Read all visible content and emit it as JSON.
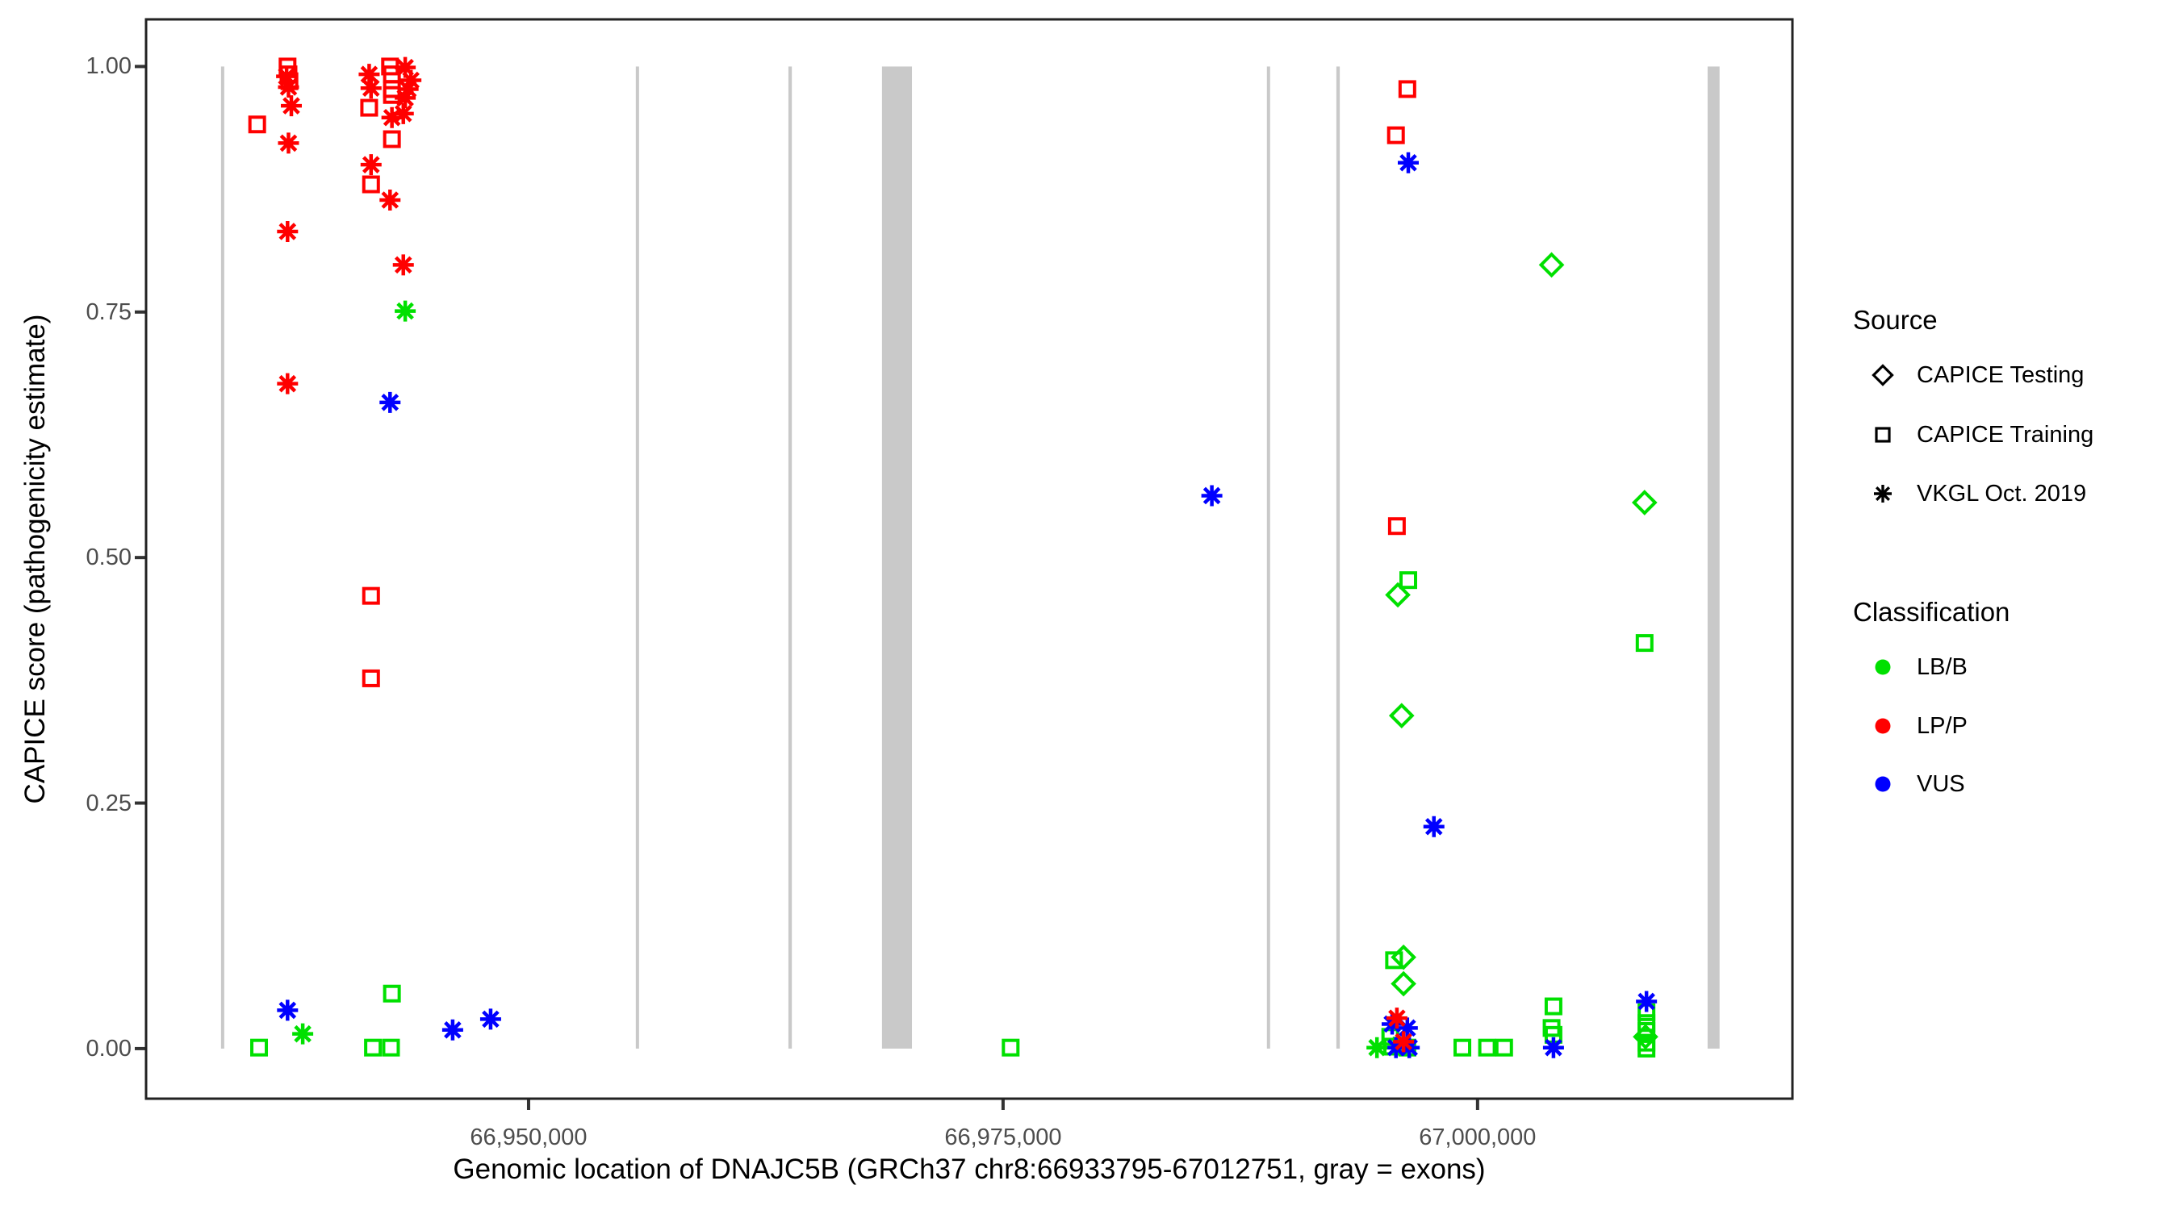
{
  "figure": {
    "x_axis_title": "Genomic location of DNAJC5B (GRCh37 chr8:66933795-67012751, gray = exons)",
    "y_axis_title": "CAPICE score (pathogenicity estimate)"
  },
  "legend": {
    "source": {
      "title": "Source",
      "items": [
        {
          "shape": "diamond",
          "label": "CAPICE Testing"
        },
        {
          "shape": "square",
          "label": "CAPICE Training"
        },
        {
          "shape": "asterisk",
          "label": "VKGL Oct. 2019"
        }
      ]
    },
    "classification": {
      "title": "Classification",
      "items": [
        {
          "label": "LB/B",
          "color": "#00E000"
        },
        {
          "label": "LP/P",
          "color": "#FF0000"
        },
        {
          "label": "VUS",
          "color": "#0000FF"
        }
      ]
    }
  },
  "chart_data": {
    "type": "scatter",
    "title": "",
    "xlabel": "Genomic location of DNAJC5B (GRCh37 chr8:66933795-67012751, gray = exons)",
    "ylabel": "CAPICE score (pathogenicity estimate)",
    "xlim": [
      66929846,
      67016590
    ],
    "ylim": [
      -0.051,
      1.048
    ],
    "grid": false,
    "legend_position": "right",
    "x_ticks": [
      {
        "pos": 66950000,
        "label": "66,950,000"
      },
      {
        "pos": 66975000,
        "label": "66,975,000"
      },
      {
        "pos": 67000000,
        "label": "67,000,000"
      }
    ],
    "y_ticks": [
      {
        "v": 0.0,
        "label": "0.00"
      },
      {
        "v": 0.25,
        "label": "0.25"
      },
      {
        "v": 0.5,
        "label": "0.50"
      },
      {
        "v": 0.75,
        "label": "0.75"
      },
      {
        "v": 1.0,
        "label": "1.00"
      }
    ],
    "exon_color": "#C9C9C9",
    "exons": [
      [
        66933795,
        66933930
      ],
      [
        66955650,
        66955790
      ],
      [
        66963690,
        66963870
      ],
      [
        66968620,
        66970200
      ],
      [
        66988900,
        66989040
      ],
      [
        66992560,
        66992740
      ],
      [
        67012120,
        67012751
      ]
    ],
    "class_colors": {
      "LB/B": "#00E000",
      "LP/P": "#FF0000",
      "VUS": "#0000FF"
    },
    "source_shapes": {
      "testing": "diamond",
      "training": "square",
      "vkgl": "asterisk"
    },
    "source_names": {
      "testing": "CAPICE Testing",
      "training": "CAPICE Training",
      "vkgl": "VKGL Oct. 2019"
    },
    "points": [
      [
        66935800,
        0.001,
        "training",
        "LB/B"
      ],
      [
        66941800,
        0.001,
        "training",
        "LB/B"
      ],
      [
        66942750,
        0.001,
        "training",
        "LB/B"
      ],
      [
        66942800,
        0.056,
        "training",
        "LB/B"
      ],
      [
        66975400,
        0.001,
        "training",
        "LB/B"
      ],
      [
        66996350,
        0.477,
        "training",
        "LB/B"
      ],
      [
        67008800,
        0.413,
        "training",
        "LB/B"
      ],
      [
        66995600,
        0.09,
        "training",
        "LB/B"
      ],
      [
        66999200,
        0.001,
        "training",
        "LB/B"
      ],
      [
        67000500,
        0.001,
        "training",
        "LB/B"
      ],
      [
        67001400,
        0.001,
        "training",
        "LB/B"
      ],
      [
        67004000,
        0.043,
        "training",
        "LB/B"
      ],
      [
        67003900,
        0.021,
        "training",
        "LB/B"
      ],
      [
        67004000,
        0.014,
        "training",
        "LB/B"
      ],
      [
        67008900,
        0.037,
        "training",
        "LB/B"
      ],
      [
        67008900,
        0.026,
        "training",
        "LB/B"
      ],
      [
        67008900,
        0.018,
        "training",
        "LB/B"
      ],
      [
        67008900,
        0.006,
        "training",
        "LB/B"
      ],
      [
        67008900,
        0.0,
        "training",
        "LB/B"
      ],
      [
        66995400,
        0.012,
        "training",
        "LB/B"
      ],
      [
        66995500,
        0.002,
        "training",
        "LB/B"
      ],
      [
        66996000,
        0.003,
        "training",
        "LB/B"
      ],
      [
        66996300,
        0.001,
        "training",
        "LB/B"
      ],
      [
        67003900,
        0.798,
        "testing",
        "LB/B"
      ],
      [
        67008800,
        0.556,
        "testing",
        "LB/B"
      ],
      [
        66995800,
        0.462,
        "testing",
        "LB/B"
      ],
      [
        66996000,
        0.339,
        "testing",
        "LB/B"
      ],
      [
        66996100,
        0.093,
        "testing",
        "LB/B"
      ],
      [
        66996100,
        0.066,
        "testing",
        "LB/B"
      ],
      [
        67008850,
        0.012,
        "testing",
        "LB/B"
      ],
      [
        66937300,
        1.0,
        "training",
        "LP/P"
      ],
      [
        66937350,
        0.992,
        "training",
        "LP/P"
      ],
      [
        66937400,
        0.985,
        "training",
        "LP/P"
      ],
      [
        66935700,
        0.941,
        "training",
        "LP/P"
      ],
      [
        66942700,
        1.0,
        "training",
        "LP/P"
      ],
      [
        66942800,
        0.992,
        "training",
        "LP/P"
      ],
      [
        66942800,
        0.977,
        "training",
        "LP/P"
      ],
      [
        66942800,
        0.971,
        "training",
        "LP/P"
      ],
      [
        66941600,
        0.958,
        "training",
        "LP/P"
      ],
      [
        66942800,
        0.926,
        "training",
        "LP/P"
      ],
      [
        66941700,
        0.88,
        "training",
        "LP/P"
      ],
      [
        66941700,
        0.461,
        "training",
        "LP/P"
      ],
      [
        66941700,
        0.377,
        "training",
        "LP/P"
      ],
      [
        66996300,
        0.977,
        "training",
        "LP/P"
      ],
      [
        66995700,
        0.93,
        "training",
        "LP/P"
      ],
      [
        66995750,
        0.532,
        "training",
        "LP/P"
      ],
      [
        66942700,
        0.658,
        "vkgl",
        "VUS"
      ],
      [
        66937300,
        0.039,
        "vkgl",
        "VUS"
      ],
      [
        66946000,
        0.019,
        "vkgl",
        "VUS"
      ],
      [
        66948000,
        0.03,
        "vkgl",
        "VUS"
      ],
      [
        66986000,
        0.563,
        "vkgl",
        "VUS"
      ],
      [
        66996350,
        0.902,
        "vkgl",
        "VUS"
      ],
      [
        66997700,
        0.226,
        "vkgl",
        "VUS"
      ],
      [
        66995500,
        0.025,
        "vkgl",
        "VUS"
      ],
      [
        66996300,
        0.021,
        "vkgl",
        "VUS"
      ],
      [
        66995700,
        0.001,
        "vkgl",
        "VUS"
      ],
      [
        66996400,
        0.001,
        "vkgl",
        "VUS"
      ],
      [
        67004000,
        0.001,
        "vkgl",
        "VUS"
      ],
      [
        67008900,
        0.048,
        "vkgl",
        "VUS"
      ],
      [
        66943500,
        0.751,
        "vkgl",
        "LB/B"
      ],
      [
        66938100,
        0.015,
        "vkgl",
        "LB/B"
      ],
      [
        66994700,
        0.001,
        "vkgl",
        "LB/B"
      ],
      [
        66937250,
        0.99,
        "vkgl",
        "LP/P"
      ],
      [
        66937350,
        0.979,
        "vkgl",
        "LP/P"
      ],
      [
        66937500,
        0.96,
        "vkgl",
        "LP/P"
      ],
      [
        66937350,
        0.922,
        "vkgl",
        "LP/P"
      ],
      [
        66937300,
        0.832,
        "vkgl",
        "LP/P"
      ],
      [
        66937300,
        0.677,
        "vkgl",
        "LP/P"
      ],
      [
        66941600,
        0.992,
        "vkgl",
        "LP/P"
      ],
      [
        66941700,
        0.978,
        "vkgl",
        "LP/P"
      ],
      [
        66943500,
        0.999,
        "vkgl",
        "LP/P"
      ],
      [
        66943800,
        0.986,
        "vkgl",
        "LP/P"
      ],
      [
        66943650,
        0.977,
        "vkgl",
        "LP/P"
      ],
      [
        66943500,
        0.968,
        "vkgl",
        "LP/P"
      ],
      [
        66943400,
        0.952,
        "vkgl",
        "LP/P"
      ],
      [
        66942800,
        0.948,
        "vkgl",
        "LP/P"
      ],
      [
        66941700,
        0.9,
        "vkgl",
        "LP/P"
      ],
      [
        66942700,
        0.864,
        "vkgl",
        "LP/P"
      ],
      [
        66943400,
        0.798,
        "vkgl",
        "LP/P"
      ],
      [
        66995750,
        0.031,
        "vkgl",
        "LP/P"
      ],
      [
        66996100,
        0.007,
        "vkgl",
        "LP/P"
      ]
    ]
  }
}
